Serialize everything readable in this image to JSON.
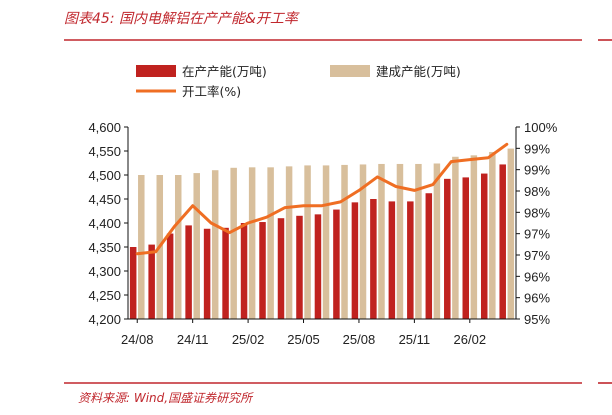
{
  "title": "图表45:  国内电解铝在产产能&开工率",
  "source": "资料来源:  Wind,国盛证券研究所",
  "colors": {
    "accent": "#c0272d",
    "capacity_running": "#c0221f",
    "capacity_built": "#d8bf9c",
    "utilization": "#ef6e23"
  },
  "chart_data": {
    "type": "bar",
    "categories": [
      "24/08",
      "24/09",
      "24/10",
      "24/11",
      "24/12",
      "25/01",
      "25/02",
      "25/03",
      "25/04",
      "25/05",
      "25/06",
      "25/07",
      "25/08",
      "25/09",
      "25/10",
      "25/11",
      "25/12",
      "26/01",
      "26/02",
      "26/03",
      "26/04"
    ],
    "x_tick_labels": [
      "24/08",
      "24/11",
      "25/02",
      "25/05",
      "25/08",
      "25/11",
      "26/02"
    ],
    "series": [
      {
        "name": "在产产能(万吨)",
        "type": "bar",
        "axis": "left",
        "values": [
          4350,
          4355,
          4378,
          4395,
          4388,
          4390,
          4400,
          4402,
          4410,
          4415,
          4418,
          4428,
          4443,
          4450,
          4445,
          4445,
          4462,
          4492,
          4495,
          4503,
          4522
        ]
      },
      {
        "name": "建成产能(万吨)",
        "type": "bar",
        "axis": "left",
        "values": [
          4500,
          4500,
          4500,
          4504,
          4510,
          4515,
          4516,
          4516,
          4518,
          4520,
          4520,
          4521,
          4522,
          4523,
          4523,
          4523,
          4524,
          4538,
          4541,
          4548,
          4555
        ]
      },
      {
        "name": "开工率(%)",
        "type": "line",
        "axis": "right",
        "values": [
          96.7,
          96.75,
          97.4,
          97.95,
          97.5,
          97.25,
          97.5,
          97.65,
          97.9,
          97.95,
          97.95,
          98.05,
          98.35,
          98.7,
          98.45,
          98.35,
          98.5,
          99.1,
          99.15,
          99.2,
          99.55
        ]
      }
    ],
    "y_left": {
      "min": 4200,
      "max": 4600,
      "ticks": [
        "4,200",
        "4,250",
        "4,300",
        "4,350",
        "4,400",
        "4,450",
        "4,500",
        "4,550",
        "4,600"
      ]
    },
    "y_right": {
      "min": 95,
      "max": 100,
      "ticks": [
        "95%",
        "96%",
        "96%",
        "97%",
        "97%",
        "98%",
        "98%",
        "99%",
        "99%",
        "100%"
      ]
    },
    "legend": [
      {
        "label": "在产产能(万吨)",
        "kind": "bar"
      },
      {
        "label": "建成产能(万吨)",
        "kind": "bar"
      },
      {
        "label": "开工率(%)",
        "kind": "line"
      }
    ],
    "legend_position": "top-left",
    "grid": false
  }
}
